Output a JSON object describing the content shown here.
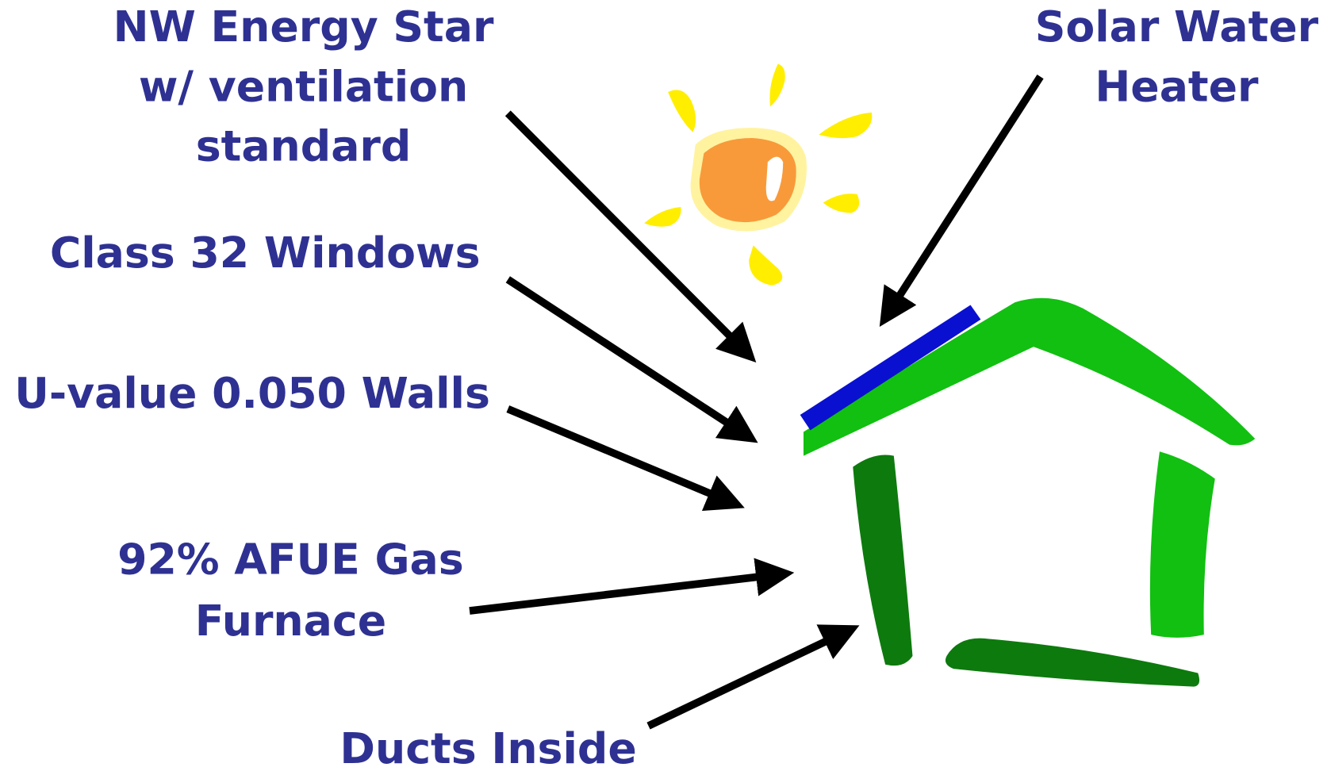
{
  "labels": [
    {
      "lines": [
        "NW Energy Star",
        "w/ ventilation",
        "standard"
      ]
    },
    {
      "lines": [
        "Solar Water",
        "Heater"
      ]
    },
    {
      "lines": [
        "Class 32 Windows"
      ]
    },
    {
      "lines": [
        "U-value 0.050 Walls"
      ]
    },
    {
      "lines": [
        "92% AFUE Gas",
        "Furnace"
      ]
    },
    {
      "lines": [
        "Ducts Inside"
      ]
    }
  ]
}
